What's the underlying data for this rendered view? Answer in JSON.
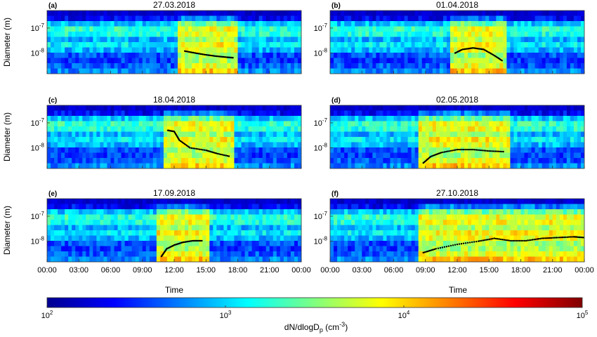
{
  "figure": {
    "ylabel": "Diameter (m)",
    "xlabel": "Time",
    "x_ticks": [
      "00:00",
      "03:00",
      "06:00",
      "09:00",
      "12:00",
      "15:00",
      "18:00",
      "21:00",
      "00:00"
    ],
    "colorbar_label": "dN/dlogD",
    "colorbar_label_sub": "p",
    "colorbar_label_units": " (cm",
    "colorbar_label_exp": "-3",
    "colorbar_label_close": ")",
    "colorbar_ticks": [
      {
        "base": "10",
        "exp": "2"
      },
      {
        "base": "10",
        "exp": "3"
      },
      {
        "base": "10",
        "exp": "4"
      },
      {
        "base": "10",
        "exp": "5"
      }
    ],
    "y_ticks": [
      {
        "base": "10",
        "exp": "-7"
      },
      {
        "base": "10",
        "exp": "-8"
      }
    ],
    "colormap": [
      "#00008f",
      "#0000ff",
      "#0080ff",
      "#00ffff",
      "#80ff80",
      "#ffff00",
      "#ff8000",
      "#ff0000",
      "#800000"
    ]
  },
  "chart_data": [
    {
      "type": "heatmap",
      "panel_label": "(a)",
      "title": "27.03.2018",
      "xlabel": "",
      "ylabel": "Diameter (m)",
      "x_range_hours": [
        0,
        24
      ],
      "y_scale": "log",
      "y_range_m": [
        1.5e-09,
        5e-07
      ],
      "color_scale": "log",
      "color_range": [
        100,
        100000
      ],
      "growth_track": {
        "x_hours": [
          13.0,
          14.0,
          15.0,
          16.0,
          17.0,
          17.6
        ],
        "y_m": [
          1.2e-08,
          1e-08,
          8.5e-09,
          7.5e-09,
          6.8e-09,
          6.5e-09
        ]
      }
    },
    {
      "type": "heatmap",
      "panel_label": "(b)",
      "title": "01.04.2018",
      "xlabel": "",
      "ylabel": "",
      "x_range_hours": [
        0,
        24
      ],
      "y_scale": "log",
      "y_range_m": [
        1.5e-09,
        5e-07
      ],
      "color_scale": "log",
      "color_range": [
        100,
        100000
      ],
      "growth_track": {
        "x_hours": [
          11.8,
          12.5,
          13.5,
          14.5,
          15.5,
          16.3
        ],
        "y_m": [
          1e-08,
          1.4e-08,
          1.6e-08,
          1.4e-08,
          8e-09,
          4.8e-09
        ]
      }
    },
    {
      "type": "heatmap",
      "panel_label": "(c)",
      "title": "18.04.2018",
      "xlabel": "",
      "ylabel": "Diameter (m)",
      "x_range_hours": [
        0,
        24
      ],
      "y_scale": "log",
      "y_range_m": [
        1.5e-09,
        5e-07
      ],
      "color_scale": "log",
      "color_range": [
        100,
        100000
      ],
      "growth_track": {
        "x_hours": [
          11.4,
          12.0,
          12.5,
          13.5,
          15.0,
          16.0,
          17.3
        ],
        "y_m": [
          5e-08,
          4.5e-08,
          2e-08,
          1e-08,
          8e-09,
          6e-09,
          4.5e-09
        ]
      }
    },
    {
      "type": "heatmap",
      "panel_label": "(d)",
      "title": "02.05.2018",
      "xlabel": "",
      "ylabel": "",
      "x_range_hours": [
        0,
        24
      ],
      "y_scale": "log",
      "y_range_m": [
        1.5e-09,
        5e-07
      ],
      "color_scale": "log",
      "color_range": [
        100,
        100000
      ],
      "growth_track": {
        "x_hours": [
          8.8,
          9.5,
          10.5,
          12.0,
          13.5,
          15.0,
          16.5
        ],
        "y_m": [
          2.5e-09,
          4.5e-09,
          6.5e-09,
          8.5e-09,
          8.5e-09,
          7.5e-09,
          7e-09
        ]
      }
    },
    {
      "type": "heatmap",
      "panel_label": "(e)",
      "title": "17.09.2018",
      "xlabel": "Time",
      "ylabel": "Diameter (m)",
      "x_range_hours": [
        0,
        24
      ],
      "y_scale": "log",
      "y_range_m": [
        1.5e-09,
        5e-07
      ],
      "color_scale": "log",
      "color_range": [
        100,
        100000
      ],
      "growth_track": {
        "x_hours": [
          10.8,
          11.3,
          12.0,
          12.8,
          13.8,
          14.7
        ],
        "y_m": [
          2.5e-09,
          5e-09,
          7e-09,
          9e-09,
          1.05e-08,
          1.05e-08
        ]
      }
    },
    {
      "type": "heatmap",
      "panel_label": "(f)",
      "title": "27.10.2018",
      "xlabel": "Time",
      "ylabel": "",
      "x_range_hours": [
        0,
        24
      ],
      "y_scale": "log",
      "y_range_m": [
        1.5e-09,
        5e-07
      ],
      "color_scale": "log",
      "color_range": [
        100,
        100000
      ],
      "growth_track": {
        "x_hours": [
          8.8,
          10.0,
          12.0,
          14.0,
          15.5,
          17.0,
          18.5,
          20.0,
          21.5,
          23.0,
          24.0
        ],
        "y_m": [
          3.5e-09,
          5e-09,
          7.5e-09,
          1e-08,
          1.3e-08,
          1.05e-08,
          1.05e-08,
          1.3e-08,
          1.4e-08,
          1.5e-08,
          1.4e-08
        ]
      }
    }
  ]
}
